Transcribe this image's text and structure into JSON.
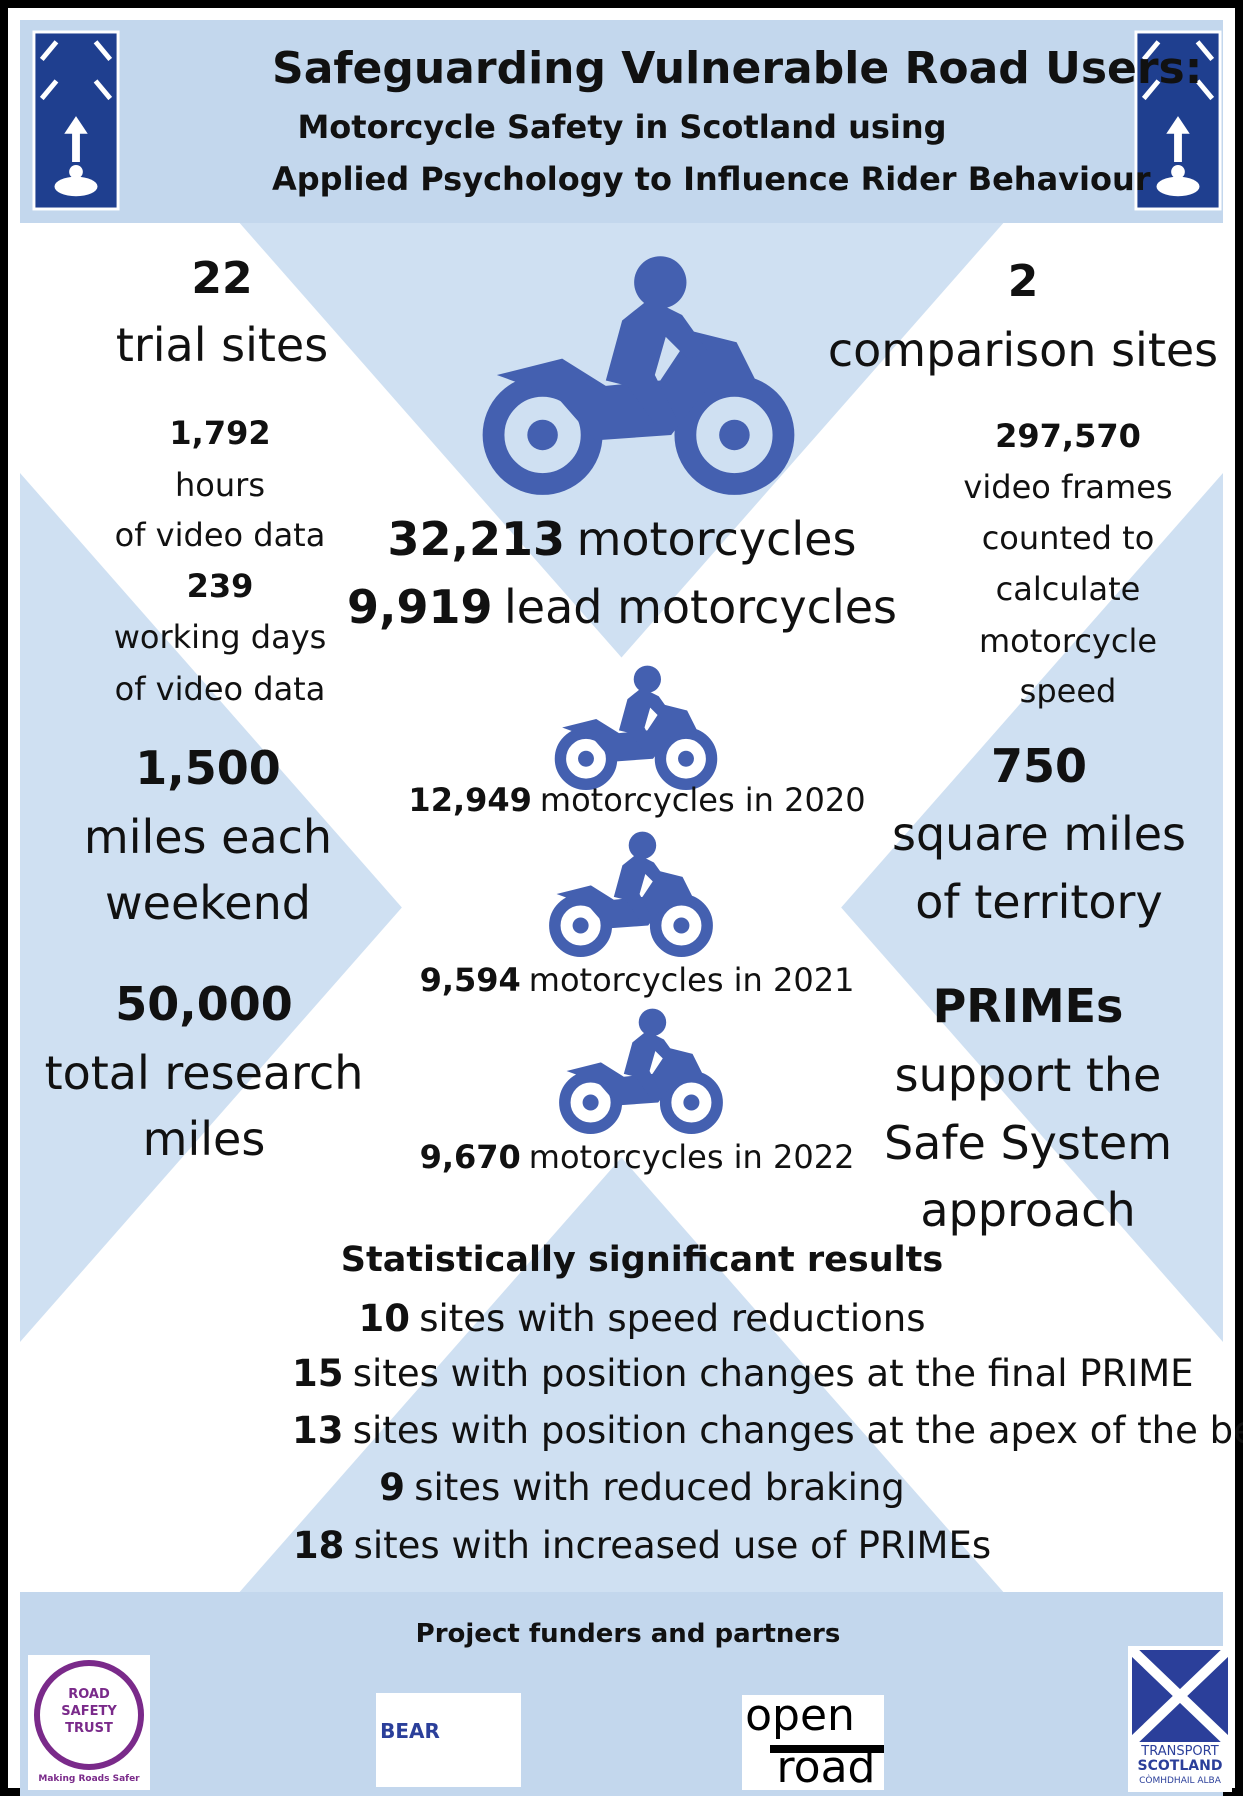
{
  "header": {
    "title": "Safeguarding Vulnerable Road Users:",
    "subtitle_lines": [
      "Motorcycle Safety in Scotland using",
      "Applied Psychology to Influence Rider Behaviour"
    ]
  },
  "left_stats": [
    {
      "number": "22",
      "label": [
        "trial sites"
      ]
    },
    {
      "number": "1,792",
      "label": [
        "hours",
        "of video data"
      ]
    },
    {
      "number": "239",
      "label": [
        "working days",
        "of video data"
      ]
    },
    {
      "number": "1,500",
      "label": [
        "miles each",
        "weekend"
      ]
    },
    {
      "number": "50,000",
      "label": [
        "total research",
        "miles"
      ]
    }
  ],
  "right_stats": [
    {
      "number": "2",
      "label": [
        "comparison sites"
      ]
    },
    {
      "number": "297,570",
      "label": [
        "video frames",
        "counted to",
        "calculate",
        "motorcycle",
        "speed"
      ]
    },
    {
      "number": "750",
      "label": [
        "square miles",
        "of territory"
      ]
    },
    {
      "number": "PRIMEs",
      "label": [
        "support the",
        "Safe System",
        "approach"
      ]
    }
  ],
  "center_stats": [
    {
      "number": "32,213",
      "label": "motorcycles"
    },
    {
      "number": "9,919",
      "label": "lead motorcycles"
    }
  ],
  "yearly": [
    {
      "number": "12,949",
      "label": "motorcycles in 2020"
    },
    {
      "number": "9,594",
      "label": "motorcycles in 2021"
    },
    {
      "number": "9,670",
      "label": "motorcycles in 2022"
    }
  ],
  "results": {
    "heading": "Statistically significant results",
    "items": [
      {
        "number": "10",
        "text": "sites with speed reductions"
      },
      {
        "number": "15",
        "text": "sites with position changes at the final PRIME"
      },
      {
        "number": "13",
        "text": "sites with position changes at the apex of the bend"
      },
      {
        "number": "9",
        "text": "sites with reduced braking"
      },
      {
        "number": "18",
        "text": "sites with increased use of PRIMEs"
      }
    ]
  },
  "footer": {
    "heading": "Project funders and partners",
    "logos": [
      {
        "text": [
          "ROAD",
          "SAFETY",
          "TRUST"
        ],
        "tagline": "Making Roads Safer"
      },
      {
        "text": [
          "BEAR"
        ]
      },
      {
        "text": [
          "open",
          "road"
        ]
      },
      {
        "text": [
          "TRANSPORT",
          "SCOTLAND"
        ],
        "tagline": "CÒMHDHAIL ALBA"
      }
    ]
  }
}
